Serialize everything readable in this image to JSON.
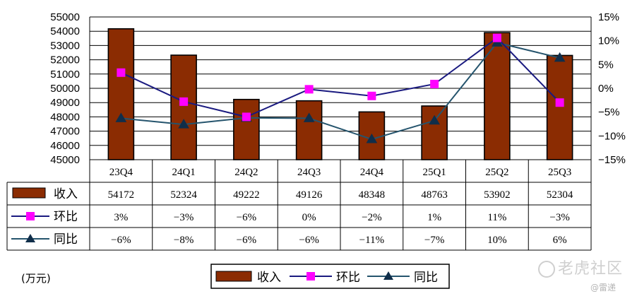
{
  "chart_data": {
    "type": "bar+line",
    "categories": [
      "23Q4",
      "24Q1",
      "24Q2",
      "24Q3",
      "24Q4",
      "25Q1",
      "25Q2",
      "25Q3"
    ],
    "left_axis": {
      "min": 45000,
      "max": 55000,
      "step": 1000,
      "ticks": [
        "45000",
        "46000",
        "47000",
        "48000",
        "49000",
        "50000",
        "51000",
        "52000",
        "53000",
        "54000",
        "55000"
      ]
    },
    "right_axis": {
      "min": -15,
      "max": 15,
      "step": 5,
      "ticks": [
        "-15%",
        "-10%",
        "-5%",
        "0%",
        "5%",
        "10%",
        "15%"
      ]
    },
    "series": [
      {
        "name": "收入",
        "type": "bar",
        "axis": "left",
        "color": "#8b2c02",
        "values": [
          54172,
          52324,
          49222,
          49126,
          48348,
          48763,
          53902,
          52304
        ],
        "labels": [
          "54172",
          "52324",
          "49222",
          "49126",
          "48348",
          "48763",
          "53902",
          "52304"
        ]
      },
      {
        "name": "环比",
        "type": "line",
        "axis": "right",
        "color": "#1a1a80",
        "marker_color": "#ff00ff",
        "values": [
          3.3,
          -2.8,
          -6.0,
          -0.2,
          -1.6,
          0.9,
          10.6,
          -3.0
        ],
        "labels": [
          "3%",
          "-3%",
          "-6%",
          "0%",
          "-2%",
          "1%",
          "11%",
          "-3%"
        ]
      },
      {
        "name": "同比",
        "type": "line",
        "axis": "right",
        "color": "#25546d",
        "marker_color": "#102e4a",
        "values": [
          -6.3,
          -7.6,
          -6.2,
          -6.3,
          -10.7,
          -6.8,
          9.6,
          6.4
        ],
        "labels": [
          "-6%",
          "-8%",
          "-6%",
          "-6%",
          "-11%",
          "-7%",
          "10%",
          "6%"
        ]
      }
    ],
    "legend": [
      "收入",
      "环比",
      "同比"
    ],
    "legend_position": "bottom-center",
    "grid": true
  },
  "unit_label": "(万元)",
  "watermark": {
    "text": "老虎社区",
    "sub": "@雷递"
  }
}
